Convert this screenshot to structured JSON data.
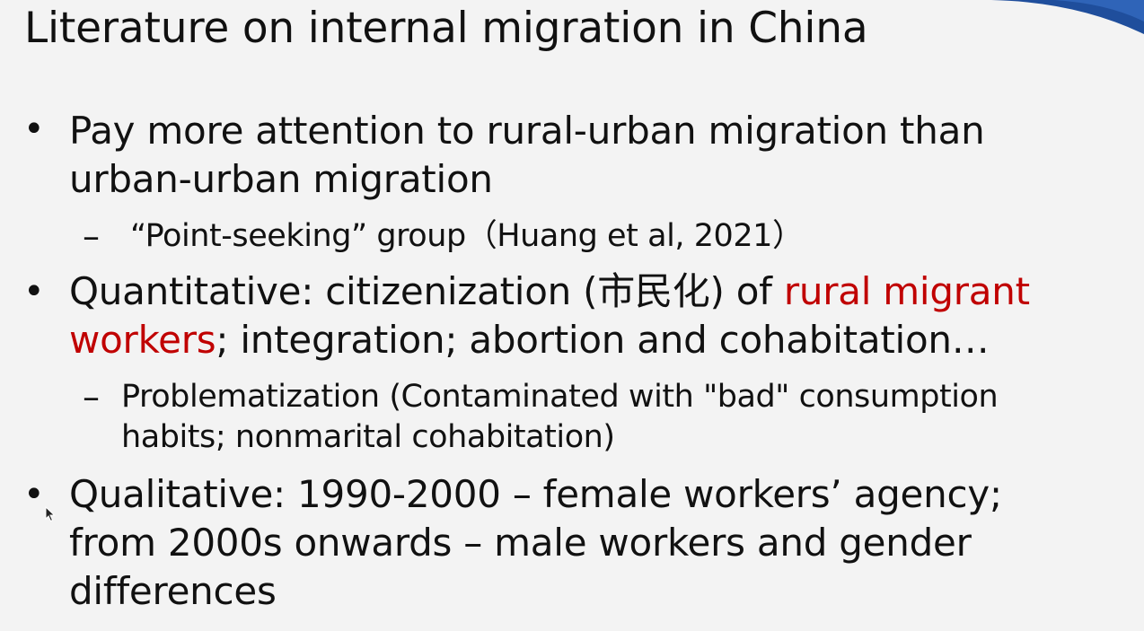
{
  "slide": {
    "title": "Literature on internal migration in China",
    "bullet_marker": "•",
    "dash_marker": "–",
    "bullet1": {
      "line1": "Pay more attention to rural-urban migration than",
      "line2": "urban-urban migration",
      "sub1": "“Point-seeking” group（Huang et al, 2021）"
    },
    "bullet2": {
      "line1_prefix": "Quantitative: citizenization (市民化) of ",
      "line1_red": "rural migrant",
      "line2_red": "workers",
      "line2_suffix": "; integration; abortion and cohabitation…",
      "sub1_line1": "Problematization (Contaminated with \"bad\" consumption",
      "sub1_line2": "habits; nonmarital cohabitation)"
    },
    "bullet3": {
      "line1": "Qualitative: 1990-2000 – female workers’ agency;",
      "line2": "from 2000s onwards – male workers and gender",
      "line3": "differences"
    }
  },
  "colors": {
    "background": "#f3f3f3",
    "text": "#111111",
    "highlight_red": "#c00000",
    "accent_blue": "#1f4e9c"
  },
  "icons": {
    "corner_decoration": "blue-swoosh-decoration",
    "pointer": "mouse-pointer-icon"
  }
}
